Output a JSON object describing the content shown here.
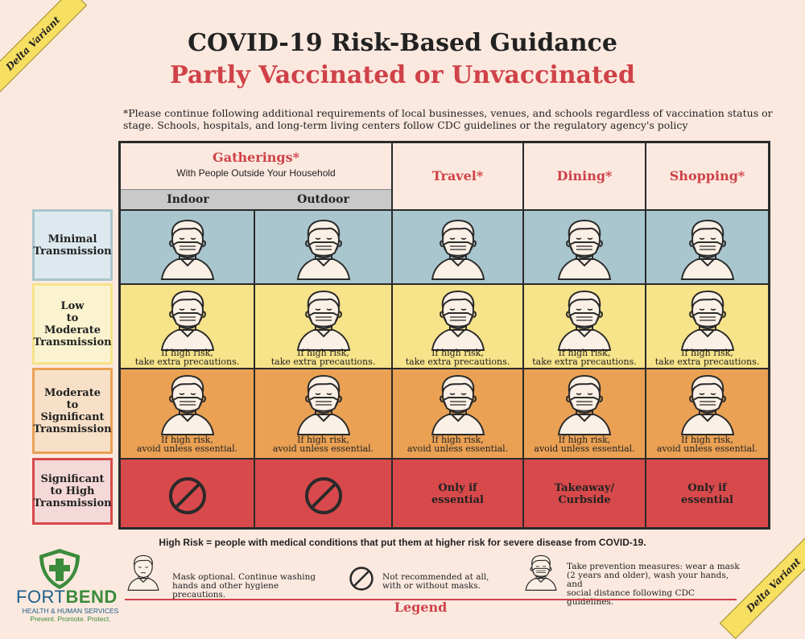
{
  "corner_label": "Delta Variant",
  "title": "COVID-19 Risk-Based Guidance",
  "subtitle": "Partly Vaccinated or Unvaccinated",
  "note": "*Please continue following additional requirements of local businesses, venues, and schools regardless of vaccination status or stage. Schools, hospitals, and long-term living centers follow CDC guidelines or the regulatory agency's policy",
  "columns": {
    "gatherings": "Gatherings*",
    "gatherings_sub": "With People Outside Your Household",
    "indoor": "Indoor",
    "outdoor": "Outdoor",
    "travel": "Travel*",
    "dining": "Dining*",
    "shopping": "Shopping*"
  },
  "rows": {
    "minimal": [
      "Minimal",
      "Transmission"
    ],
    "low": [
      "Low",
      "to",
      "Moderate",
      "Transmission"
    ],
    "moderate": [
      "Moderate",
      "to",
      "Significant",
      "Transmission"
    ],
    "significant": [
      "Significant",
      "to High",
      "Transmission"
    ]
  },
  "captions": {
    "low": [
      "If high risk,",
      "take extra precautions."
    ],
    "moderate": [
      "If high risk,",
      "avoid unless essential."
    ]
  },
  "significant_cells": {
    "travel": [
      "Only if",
      "essential"
    ],
    "dining": [
      "Takeaway/",
      "Curbside"
    ],
    "shopping": [
      "Only if",
      "essential"
    ]
  },
  "high_risk_note": "High Risk = people with medical conditions that put them at higher risk for severe disease from COVID-19.",
  "legend": {
    "title": "Legend",
    "mask_optional": [
      "Mask optional. Continue washing",
      "hands and other hygiene precautions."
    ],
    "not_recommended": [
      "Not recommended at all,",
      "with or without masks."
    ],
    "prevention": [
      "Take prevention measures: wear a mask",
      "(2 years and older), wash your hands, and",
      "social distance following CDC guidelines."
    ]
  },
  "logo": {
    "name_part1": "FORT",
    "name_part2": "BEND",
    "sub": "HEALTH & HUMAN SERVICES",
    "tagline": "Prevent. Promote. Protect."
  },
  "colors": {
    "accent_red": "#cf4248",
    "minimal": "#a9c6ce",
    "low": "#f6e38a",
    "moderate": "#eaa154",
    "significant": "#d8494b"
  }
}
